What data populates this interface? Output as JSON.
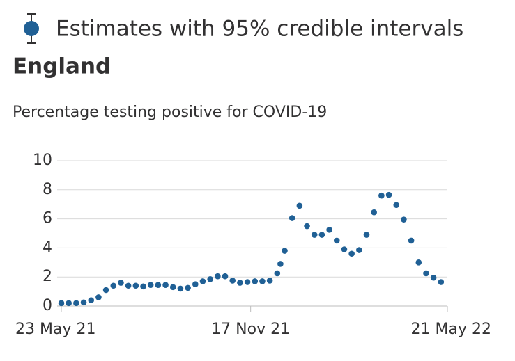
{
  "chart_data": {
    "type": "scatter",
    "title": "England",
    "subtitle": "Percentage testing positive for COVID-19",
    "x": [
      "2021-05-23",
      "2021-05-30",
      "2021-06-06",
      "2021-06-13",
      "2021-06-20",
      "2021-06-27",
      "2021-07-04",
      "2021-07-11",
      "2021-07-18",
      "2021-07-25",
      "2021-08-01",
      "2021-08-08",
      "2021-08-15",
      "2021-08-22",
      "2021-08-29",
      "2021-09-05",
      "2021-09-12",
      "2021-09-19",
      "2021-09-26",
      "2021-10-03",
      "2021-10-10",
      "2021-10-17",
      "2021-10-24",
      "2021-10-31",
      "2021-11-07",
      "2021-11-14",
      "2021-11-21",
      "2021-11-28",
      "2021-12-05",
      "2021-12-12",
      "2021-12-15",
      "2021-12-19",
      "2021-12-26",
      "2022-01-02",
      "2022-01-09",
      "2022-01-16",
      "2022-01-23",
      "2022-01-30",
      "2022-02-06",
      "2022-02-13",
      "2022-02-20",
      "2022-02-27",
      "2022-03-06",
      "2022-03-13",
      "2022-03-20",
      "2022-03-27",
      "2022-04-03",
      "2022-04-10",
      "2022-04-17",
      "2022-04-24",
      "2022-05-01",
      "2022-05-08",
      "2022-05-15"
    ],
    "series": [
      {
        "name": "Estimates with 95% credible intervals",
        "color": "#206095",
        "values": [
          0.2,
          0.2,
          0.2,
          0.25,
          0.4,
          0.6,
          1.1,
          1.4,
          1.6,
          1.4,
          1.4,
          1.35,
          1.45,
          1.45,
          1.45,
          1.3,
          1.2,
          1.25,
          1.5,
          1.7,
          1.85,
          2.05,
          2.05,
          1.75,
          1.6,
          1.65,
          1.7,
          1.7,
          1.75,
          2.25,
          2.9,
          3.8,
          6.05,
          6.9,
          5.5,
          4.9,
          4.9,
          5.25,
          4.5,
          3.9,
          3.6,
          3.85,
          4.9,
          6.45,
          7.6,
          7.65,
          6.95,
          5.95,
          4.5,
          3.0,
          2.25,
          1.95,
          1.65
        ]
      }
    ],
    "xlim": [
      "2021-05-23",
      "2022-05-21"
    ],
    "xticks": [
      {
        "value": "2021-05-23",
        "label": "23 May 21"
      },
      {
        "value": "2021-11-17",
        "label": "17 Nov 21"
      },
      {
        "value": "2022-05-21",
        "label": "21 May 22"
      }
    ],
    "ylim": [
      0,
      10
    ],
    "yticks": [
      0,
      2,
      4,
      6,
      8,
      10
    ],
    "grid": true
  }
}
